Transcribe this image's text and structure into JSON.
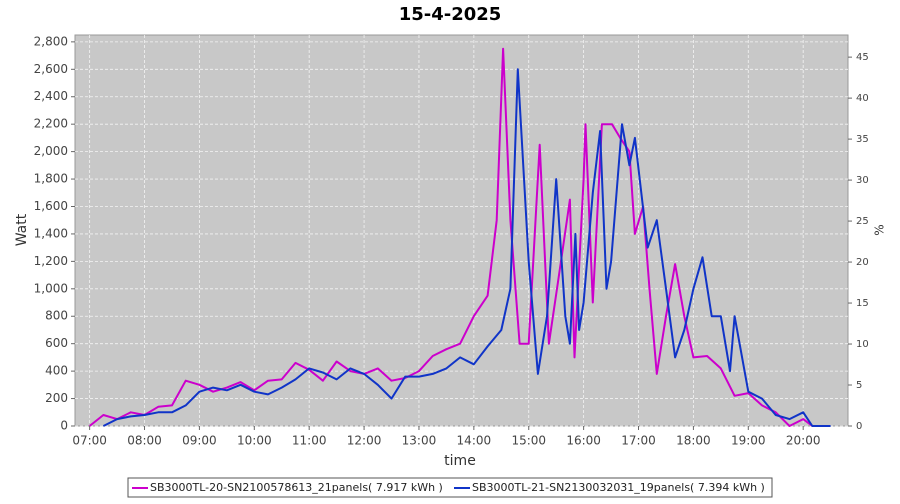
{
  "chart_data": {
    "type": "line",
    "title": "15-4-2025",
    "x_label": "time",
    "y_label": "Watt",
    "y2_label": "%",
    "grid": true,
    "background": "#c8c8c8",
    "legend": "bottom",
    "xlim": [
      "06:44",
      "20:49"
    ],
    "xticks": [
      "07:00",
      "08:00",
      "09:00",
      "10:00",
      "11:00",
      "12:00",
      "13:00",
      "14:00",
      "15:00",
      "16:00",
      "17:00",
      "18:00",
      "19:00",
      "20:00"
    ],
    "ylim": [
      0,
      2850
    ],
    "yticks": [
      0,
      {
        "value": 200,
        "label": "200"
      },
      400,
      600,
      800,
      {
        "value": 1000,
        "label": "1,000"
      },
      {
        "value": 1200,
        "label": "1,200"
      },
      {
        "value": 1400,
        "label": "1,400"
      },
      {
        "value": 1600,
        "label": "1,600"
      },
      {
        "value": 1800,
        "label": "1,800"
      },
      {
        "value": 2000,
        "label": "2,000"
      },
      {
        "value": 2200,
        "label": "2,200"
      },
      {
        "value": 2400,
        "label": "2,400"
      },
      {
        "value": 2600,
        "label": "2,600"
      },
      {
        "value": 2800,
        "label": "2,800"
      }
    ],
    "y2lim": [
      0,
      47.7
    ],
    "y2ticks": [
      0,
      5,
      10,
      15,
      20,
      25,
      30,
      35,
      40,
      45
    ],
    "series": [
      {
        "name": "SB3000TL-20-SN2100578613_21panels( 7.917 kWh )",
        "color": "#cc00cc",
        "x": [
          "07:00",
          "07:15",
          "07:30",
          "07:45",
          "08:00",
          "08:15",
          "08:30",
          "08:45",
          "09:00",
          "09:15",
          "09:30",
          "09:45",
          "10:00",
          "10:15",
          "10:30",
          "10:45",
          "11:00",
          "11:15",
          "11:30",
          "11:45",
          "12:00",
          "12:15",
          "12:30",
          "12:45",
          "13:00",
          "13:15",
          "13:30",
          "13:45",
          "14:00",
          "14:15",
          "14:25",
          "14:32",
          "14:40",
          "14:50",
          "15:00",
          "15:12",
          "15:22",
          "15:32",
          "15:45",
          "15:50",
          "16:00",
          "16:02",
          "16:10",
          "16:20",
          "16:31",
          "16:40",
          "16:50",
          "16:56",
          "17:05",
          "17:12",
          "17:20",
          "17:30",
          "17:40",
          "17:50",
          "18:00",
          "18:15",
          "18:30",
          "18:45",
          "19:00",
          "19:15",
          "19:30",
          "19:45",
          "20:00",
          "20:10"
        ],
        "values": [
          0,
          80,
          50,
          100,
          80,
          140,
          150,
          330,
          300,
          250,
          280,
          320,
          260,
          330,
          340,
          460,
          410,
          330,
          470,
          400,
          380,
          420,
          330,
          350,
          400,
          510,
          560,
          600,
          800,
          950,
          1500,
          2750,
          1500,
          600,
          600,
          2050,
          600,
          1050,
          1650,
          500,
          1800,
          2200,
          900,
          2200,
          2200,
          2100,
          2000,
          1400,
          1600,
          1000,
          380,
          800,
          1180,
          800,
          500,
          510,
          420,
          220,
          240,
          150,
          100,
          0,
          50,
          0
        ]
      },
      {
        "name": "SB3000TL-21-SN2130032031_19panels( 7.394 kWh )",
        "color": "#1034c8",
        "x": [
          "07:15",
          "07:30",
          "07:45",
          "08:00",
          "08:15",
          "08:30",
          "08:45",
          "09:00",
          "09:15",
          "09:30",
          "09:45",
          "10:00",
          "10:15",
          "10:30",
          "10:45",
          "11:00",
          "11:15",
          "11:30",
          "11:45",
          "12:00",
          "12:15",
          "12:30",
          "12:45",
          "13:00",
          "13:15",
          "13:30",
          "13:45",
          "14:00",
          "14:15",
          "14:30",
          "14:40",
          "14:48",
          "15:00",
          "15:10",
          "15:20",
          "15:30",
          "15:40",
          "15:45",
          "15:51",
          "15:55",
          "16:00",
          "16:10",
          "16:18",
          "16:25",
          "16:30",
          "16:42",
          "16:50",
          "16:56",
          "17:10",
          "17:20",
          "17:30",
          "17:40",
          "17:50",
          "18:00",
          "18:10",
          "18:20",
          "18:30",
          "18:40",
          "18:45",
          "18:50",
          "19:00",
          "19:15",
          "19:30",
          "19:45",
          "20:00",
          "20:10",
          "20:30"
        ],
        "values": [
          0,
          50,
          70,
          80,
          100,
          100,
          150,
          250,
          280,
          260,
          300,
          250,
          230,
          280,
          340,
          420,
          390,
          340,
          420,
          380,
          300,
          200,
          360,
          360,
          380,
          420,
          500,
          450,
          580,
          700,
          1000,
          2600,
          1200,
          380,
          800,
          1800,
          800,
          600,
          1400,
          700,
          900,
          1700,
          2150,
          1000,
          1200,
          2200,
          1900,
          2100,
          1300,
          1500,
          1000,
          500,
          700,
          1000,
          1230,
          800,
          800,
          400,
          800,
          620,
          250,
          200,
          80,
          50,
          100,
          0,
          0
        ]
      }
    ]
  }
}
